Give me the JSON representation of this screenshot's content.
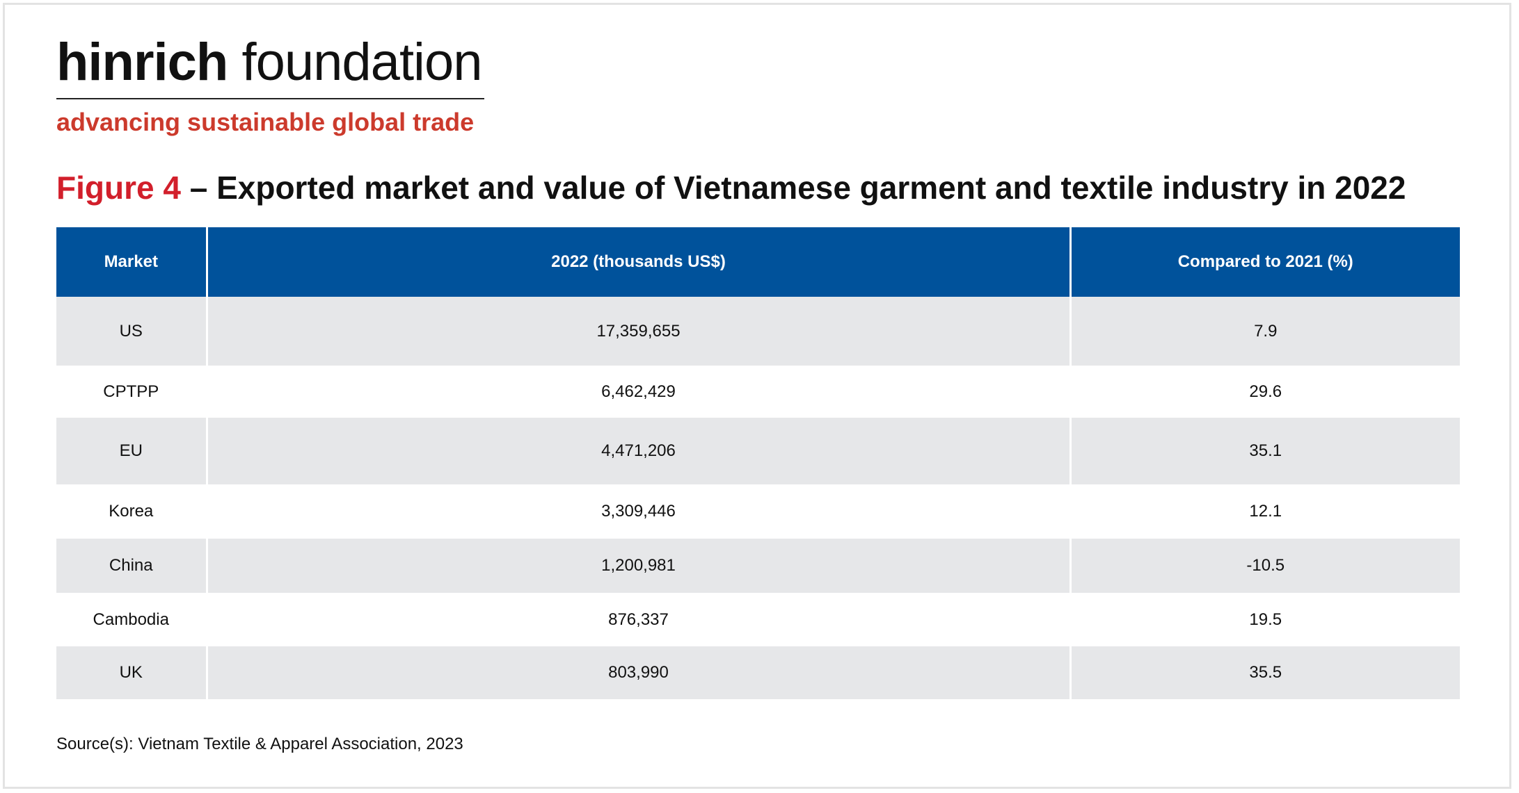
{
  "logo": {
    "name_bold": "hinrich",
    "name_light": "foundation",
    "tagline": "advancing sustainable global trade"
  },
  "figure": {
    "label": "Figure 4",
    "title": "– Exported market and value of Vietnamese garment and textile industry in 2022"
  },
  "table": {
    "header": [
      "Market",
      "2022 (thousands US$)",
      "Compared to 2021 (%)"
    ],
    "rows": [
      [
        "US",
        "17,359,655",
        "7.9"
      ],
      [
        "CPTPP",
        "6,462,429",
        "29.6"
      ],
      [
        "EU",
        "4,471,206",
        "35.1"
      ],
      [
        "Korea",
        "3,309,446",
        "12.1"
      ],
      [
        "China",
        "1,200,981",
        "-10.5"
      ],
      [
        "Cambodia",
        "876,337",
        "19.5"
      ],
      [
        "UK",
        "803,990",
        "35.5"
      ]
    ]
  },
  "source": "Source(s): Vietnam Textile & Apparel Association, 2023"
}
